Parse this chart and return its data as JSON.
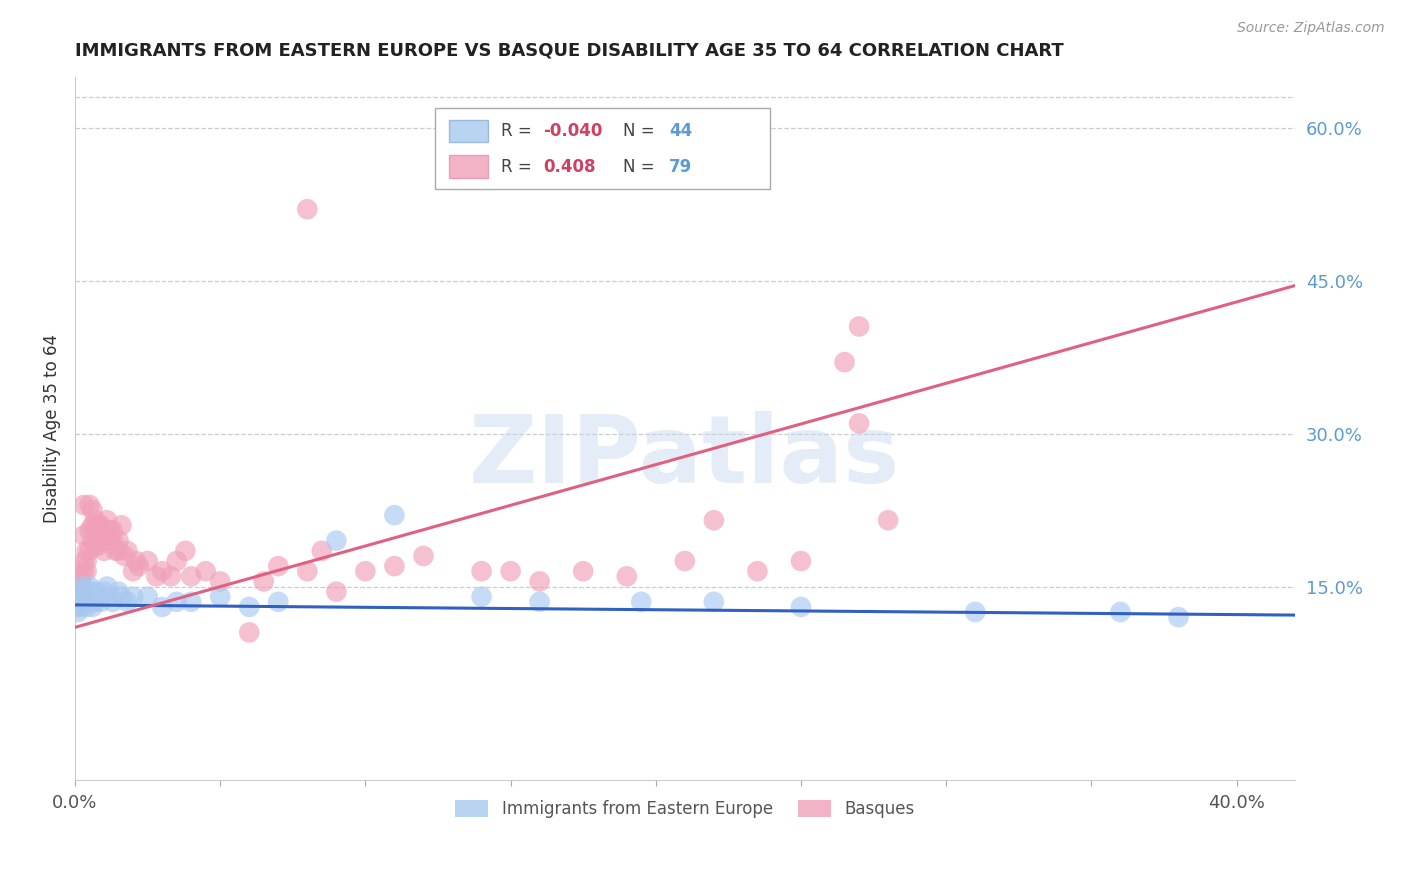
{
  "title": "IMMIGRANTS FROM EASTERN EUROPE VS BASQUE DISABILITY AGE 35 TO 64 CORRELATION CHART",
  "source": "Source: ZipAtlas.com",
  "ylabel": "Disability Age 35 to 64",
  "xlim": [
    0.0,
    0.42
  ],
  "ylim": [
    -0.04,
    0.65
  ],
  "yticks_right": [
    0.15,
    0.3,
    0.45,
    0.6
  ],
  "ytick_labels_right": [
    "15.0%",
    "30.0%",
    "45.0%",
    "60.0%"
  ],
  "grid_color": "#cccccc",
  "background_color": "#ffffff",
  "blue_color": "#a8c8f0",
  "pink_color": "#f0a0b8",
  "blue_line_color": "#3060c0",
  "pink_line_color": "#e06080",
  "legend_R_blue": "-0.040",
  "legend_N_blue": "44",
  "legend_R_pink": "0.408",
  "legend_N_pink": "79",
  "legend_label_blue": "Immigrants from Eastern Europe",
  "legend_label_pink": "Basques",
  "watermark": "ZIPatlas",
  "blue_scatter_x": [
    0.001,
    0.001,
    0.001,
    0.002,
    0.002,
    0.002,
    0.003,
    0.003,
    0.004,
    0.004,
    0.005,
    0.005,
    0.005,
    0.006,
    0.006,
    0.007,
    0.007,
    0.008,
    0.009,
    0.01,
    0.011,
    0.012,
    0.013,
    0.015,
    0.016,
    0.018,
    0.02,
    0.025,
    0.03,
    0.035,
    0.04,
    0.05,
    0.06,
    0.07,
    0.09,
    0.11,
    0.14,
    0.16,
    0.195,
    0.22,
    0.25,
    0.31,
    0.36,
    0.38
  ],
  "blue_scatter_y": [
    0.145,
    0.135,
    0.125,
    0.15,
    0.14,
    0.13,
    0.145,
    0.135,
    0.14,
    0.13,
    0.15,
    0.145,
    0.135,
    0.14,
    0.13,
    0.145,
    0.135,
    0.14,
    0.135,
    0.145,
    0.15,
    0.14,
    0.135,
    0.145,
    0.14,
    0.135,
    0.14,
    0.14,
    0.13,
    0.135,
    0.135,
    0.14,
    0.13,
    0.135,
    0.195,
    0.22,
    0.14,
    0.135,
    0.135,
    0.135,
    0.13,
    0.125,
    0.125,
    0.12
  ],
  "pink_scatter_x": [
    0.001,
    0.001,
    0.001,
    0.001,
    0.002,
    0.002,
    0.002,
    0.002,
    0.003,
    0.003,
    0.003,
    0.003,
    0.004,
    0.004,
    0.004,
    0.005,
    0.005,
    0.005,
    0.006,
    0.006,
    0.006,
    0.007,
    0.007,
    0.007,
    0.008,
    0.008,
    0.008,
    0.009,
    0.009,
    0.01,
    0.01,
    0.01,
    0.011,
    0.011,
    0.012,
    0.012,
    0.013,
    0.013,
    0.014,
    0.015,
    0.015,
    0.016,
    0.017,
    0.018,
    0.02,
    0.021,
    0.022,
    0.025,
    0.028,
    0.03,
    0.033,
    0.035,
    0.038,
    0.04,
    0.045,
    0.05,
    0.06,
    0.065,
    0.07,
    0.08,
    0.085,
    0.09,
    0.1,
    0.11,
    0.12,
    0.14,
    0.15,
    0.16,
    0.175,
    0.19,
    0.21,
    0.22,
    0.235,
    0.25,
    0.265,
    0.27,
    0.28,
    0.27,
    0.08
  ],
  "pink_scatter_y": [
    0.155,
    0.145,
    0.14,
    0.13,
    0.16,
    0.155,
    0.145,
    0.135,
    0.23,
    0.2,
    0.175,
    0.165,
    0.185,
    0.175,
    0.165,
    0.23,
    0.205,
    0.185,
    0.225,
    0.21,
    0.195,
    0.215,
    0.205,
    0.19,
    0.21,
    0.2,
    0.19,
    0.21,
    0.2,
    0.205,
    0.195,
    0.185,
    0.215,
    0.205,
    0.205,
    0.195,
    0.205,
    0.195,
    0.185,
    0.195,
    0.185,
    0.21,
    0.18,
    0.185,
    0.165,
    0.175,
    0.17,
    0.175,
    0.16,
    0.165,
    0.16,
    0.175,
    0.185,
    0.16,
    0.165,
    0.155,
    0.105,
    0.155,
    0.17,
    0.165,
    0.185,
    0.145,
    0.165,
    0.17,
    0.18,
    0.165,
    0.165,
    0.155,
    0.165,
    0.16,
    0.175,
    0.215,
    0.165,
    0.175,
    0.37,
    0.31,
    0.215,
    0.405,
    0.52
  ],
  "blue_trend_x": [
    0.0,
    0.42
  ],
  "blue_trend_y": [
    0.132,
    0.122
  ],
  "pink_trend_x": [
    0.0,
    0.42
  ],
  "pink_trend_y": [
    0.11,
    0.445
  ]
}
